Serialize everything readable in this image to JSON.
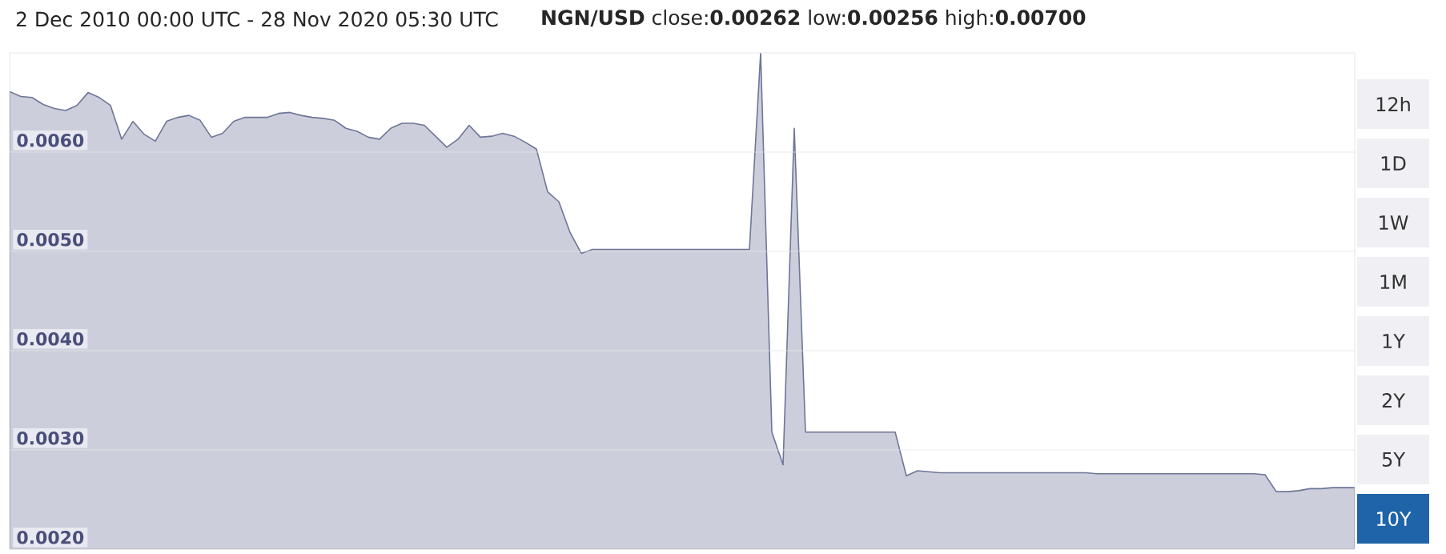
{
  "chart_data": {
    "type": "area",
    "title": "2 Dec 2010 00:00 UTC - 28 Nov 2020 05:30 UTC",
    "subtitle": "**NGN/USD** close:**0.00262** low:**0.00256** high:**0.00700**",
    "categories": [
      null,
      null,
      null,
      null,
      null,
      null,
      null,
      null,
      null,
      null,
      null,
      null,
      null,
      null,
      null,
      null,
      null,
      null,
      null,
      null,
      null,
      null,
      null,
      null,
      null,
      null,
      null,
      null,
      null,
      null,
      null,
      null,
      null,
      null,
      null,
      null,
      null,
      null,
      null,
      null,
      null,
      null,
      null,
      null,
      null,
      null,
      null,
      null,
      null,
      null,
      null,
      null,
      null,
      null,
      null,
      null,
      null,
      null,
      null,
      null,
      null,
      null,
      null,
      null,
      null,
      null,
      null,
      null,
      null,
      null,
      null,
      null,
      null,
      null,
      null,
      null,
      null,
      null,
      null,
      null,
      null,
      null,
      null,
      null,
      null,
      null,
      null,
      null,
      null,
      null,
      null,
      null,
      null,
      null,
      null,
      null,
      null,
      null,
      null,
      null,
      null,
      null,
      null,
      null,
      null,
      null,
      null,
      null,
      null,
      null,
      null,
      null,
      null,
      null,
      null,
      null,
      null,
      null,
      null,
      null,
      null
    ],
    "series": [
      {
        "color": "#6e7597",
        "values": [
          0.00661,
          0.00656,
          0.00655,
          0.00648,
          0.00644,
          0.00642,
          0.00647,
          0.0066,
          0.00655,
          0.00647,
          0.00613,
          0.00631,
          0.00618,
          0.00611,
          0.00631,
          0.00635,
          0.00637,
          0.00632,
          0.00615,
          0.00619,
          0.00631,
          0.00635,
          0.00635,
          0.00635,
          0.00639,
          0.0064,
          0.00637,
          0.00635,
          0.00634,
          0.00632,
          0.00624,
          0.00621,
          0.00615,
          0.00613,
          0.00624,
          0.00629,
          0.00629,
          0.00627,
          0.00616,
          0.00605,
          0.00613,
          0.00627,
          0.00615,
          0.00616,
          0.00619,
          0.00616,
          0.0061,
          0.00603,
          0.0056,
          0.0055,
          0.00519,
          0.00498,
          0.00502,
          0.00502,
          0.00502,
          0.00502,
          0.00502,
          0.00502,
          0.00502,
          0.00502,
          0.00502,
          0.00502,
          0.00502,
          0.00502,
          0.00502,
          0.00502,
          0.00502,
          0.007,
          0.00318,
          0.00285,
          0.00624,
          0.00318,
          0.00318,
          0.00318,
          0.00318,
          0.00318,
          0.00318,
          0.00318,
          0.00318,
          0.00318,
          0.00274,
          0.00279,
          0.00278,
          0.00277,
          0.00277,
          0.00277,
          0.00277,
          0.00277,
          0.00277,
          0.00277,
          0.00277,
          0.00277,
          0.00277,
          0.00277,
          0.00277,
          0.00277,
          0.00277,
          0.00276,
          0.00276,
          0.00276,
          0.00276,
          0.00276,
          0.00276,
          0.00276,
          0.00276,
          0.00276,
          0.00276,
          0.00276,
          0.00276,
          0.00276,
          0.00276,
          0.00276,
          0.00275,
          0.00258,
          0.00258,
          0.00259,
          0.00261,
          0.00261,
          0.00262,
          0.00262,
          0.00262
        ]
      }
    ],
    "ylim": [
      0.002,
      0.007
    ],
    "yticks": [
      {
        "value": 0.002,
        "label": "0.0020"
      },
      {
        "value": 0.003,
        "label": "0.0030"
      },
      {
        "value": 0.004,
        "label": "0.0040"
      },
      {
        "value": 0.005,
        "label": "0.0050"
      },
      {
        "value": 0.006,
        "label": "0.0060"
      }
    ],
    "tick_labels": "y",
    "grid": "y",
    "annotations": [
      "12h",
      "1D",
      "1W",
      "1M",
      "1Y",
      "2Y",
      "5Y",
      "10Y"
    ]
  }
}
